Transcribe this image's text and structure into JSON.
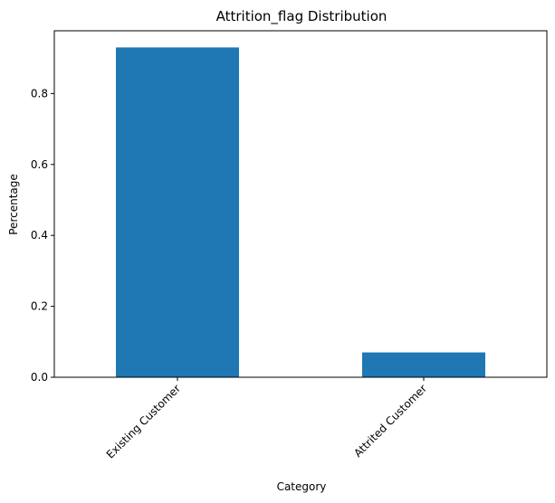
{
  "chart_data": {
    "type": "bar",
    "title": "Attrition_flag Distribution",
    "xlabel": "Category",
    "ylabel": "Percentage",
    "categories": [
      "Existing Customer",
      "Attrited Customer"
    ],
    "values": [
      0.93,
      0.07
    ],
    "ylim": [
      0,
      0.977
    ],
    "yticks": [
      0.0,
      0.2,
      0.4,
      0.6,
      0.8
    ],
    "ytick_labels": [
      "0.0",
      "0.2",
      "0.4",
      "0.6",
      "0.8"
    ],
    "bar_color": "#1f77b4",
    "grid": false,
    "legend": false,
    "x_tick_rotation": 45
  }
}
